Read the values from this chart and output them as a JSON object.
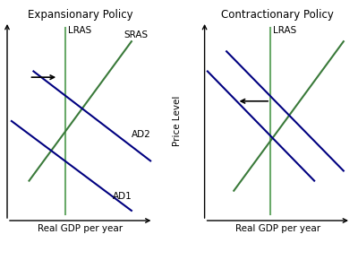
{
  "left_title": "Expansionary Policy",
  "right_title": "Contractionary Policy",
  "xlabel": "Real GDP per year",
  "ylabel": "Price Level",
  "background_color": "#ffffff",
  "ad_color": "#000080",
  "sras_color": "#3a7a3a",
  "lras_color": "#6aaa6a",
  "arrow_color": "#000000",
  "title_fontsize": 8.5,
  "label_fontsize": 7.5,
  "axis_label_fontsize": 7.5,
  "lw": 1.5
}
